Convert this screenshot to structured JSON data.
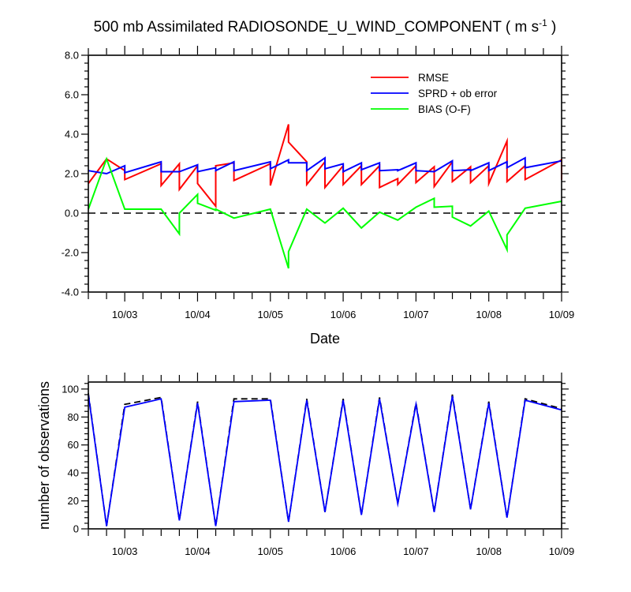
{
  "figure": {
    "title_main": "500 mb Assimilated RADIOSONDE_U_WIND_COMPONENT ( m s",
    "title_sup": "-1",
    "title_end": " )"
  },
  "chart_data": [
    {
      "type": "line",
      "title": "500 mb Assimilated RADIOSONDE_U_WIND_COMPONENT ( m s-1 )",
      "xlabel": "Date",
      "ylabel": "",
      "xlim": [
        2.5,
        9.0
      ],
      "ylim": [
        -4,
        8
      ],
      "y_ticks": [
        "-4.0",
        "-2.0",
        "0.0",
        "2.0",
        "4.0",
        "6.0",
        "8.0"
      ],
      "x_tick_labels": [
        "10/03",
        "10/04",
        "10/05",
        "10/06",
        "10/07",
        "10/08",
        "10/09"
      ],
      "x_tick_days": [
        3,
        4,
        5,
        6,
        7,
        8,
        9
      ],
      "legend": {
        "position": "top-right",
        "entries": [
          {
            "label": "RMSE",
            "color": "#ff0000"
          },
          {
            "label": "SPRD + ob error",
            "color": "#0000ff"
          },
          {
            "label": "BIAS (O-F)",
            "color": "#00ff00"
          }
        ]
      },
      "reference_line": {
        "y": 0,
        "style": "dashed",
        "color": "#000000"
      },
      "series": [
        {
          "name": "RMSE",
          "color": "#ff0000",
          "x": [
            2.5,
            2.75,
            2.75,
            3.0,
            3.0,
            3.5,
            3.5,
            3.75,
            3.75,
            4.0,
            4.0,
            4.25,
            4.25,
            4.5,
            4.5,
            5.0,
            5.0,
            5.25,
            5.25,
            5.5,
            5.5,
            5.75,
            5.75,
            6.0,
            6.0,
            6.25,
            6.25,
            6.5,
            6.5,
            6.75,
            6.75,
            7.0,
            7.0,
            7.25,
            7.25,
            7.5,
            7.5,
            7.75,
            7.75,
            8.0,
            8.0,
            8.25,
            8.25,
            8.5,
            8.5,
            9.0,
            9.0
          ],
          "y": [
            1.5,
            2.75,
            2.75,
            2.15,
            1.7,
            2.5,
            1.4,
            2.5,
            1.2,
            2.4,
            1.5,
            0.35,
            2.4,
            2.55,
            1.65,
            2.5,
            1.4,
            4.5,
            3.6,
            2.6,
            1.45,
            2.6,
            1.3,
            2.4,
            1.45,
            2.4,
            1.45,
            2.4,
            1.3,
            1.75,
            1.45,
            2.4,
            1.55,
            2.35,
            1.35,
            2.6,
            1.6,
            2.35,
            1.55,
            2.4,
            1.5,
            3.65,
            1.6,
            2.4,
            1.7,
            2.7,
            1.7
          ]
        },
        {
          "name": "SPRD + ob error",
          "color": "#0000ff",
          "x": [
            2.5,
            2.75,
            3.0,
            3.0,
            3.5,
            3.5,
            3.75,
            4.0,
            4.0,
            4.25,
            4.25,
            4.5,
            4.5,
            5.0,
            5.0,
            5.25,
            5.25,
            5.5,
            5.5,
            5.75,
            5.75,
            6.0,
            6.0,
            6.25,
            6.25,
            6.5,
            6.5,
            6.75,
            6.75,
            7.0,
            7.0,
            7.25,
            7.25,
            7.5,
            7.5,
            7.75,
            7.75,
            8.0,
            8.0,
            8.25,
            8.25,
            8.5,
            8.5,
            9.0
          ],
          "y": [
            2.15,
            2.0,
            2.4,
            2.05,
            2.6,
            2.1,
            2.1,
            2.45,
            2.1,
            2.3,
            2.15,
            2.6,
            2.15,
            2.6,
            2.25,
            2.7,
            2.55,
            2.55,
            2.15,
            2.8,
            2.25,
            2.5,
            2.1,
            2.55,
            2.2,
            2.55,
            2.15,
            2.2,
            2.15,
            2.55,
            2.15,
            2.1,
            2.1,
            2.65,
            2.15,
            2.2,
            2.15,
            2.55,
            2.15,
            2.6,
            2.3,
            2.8,
            2.3,
            2.65
          ]
        },
        {
          "name": "BIAS (O-F)",
          "color": "#00ff00",
          "x": [
            2.5,
            2.75,
            3.0,
            3.5,
            3.5,
            3.75,
            3.75,
            4.0,
            4.0,
            4.25,
            4.25,
            4.5,
            5.0,
            5.25,
            5.25,
            5.5,
            5.75,
            6.0,
            6.25,
            6.5,
            6.75,
            7.0,
            7.25,
            7.25,
            7.5,
            7.5,
            7.75,
            8.0,
            8.25,
            8.25,
            8.5,
            9.0
          ],
          "y": [
            0.2,
            2.75,
            0.2,
            0.2,
            0.2,
            -1.05,
            0.0,
            0.95,
            0.5,
            0.15,
            0.2,
            -0.25,
            0.2,
            -2.8,
            -1.95,
            0.2,
            -0.5,
            0.25,
            -0.75,
            0.05,
            -0.35,
            0.3,
            0.75,
            0.3,
            0.35,
            -0.2,
            -0.65,
            0.1,
            -1.85,
            -1.1,
            0.25,
            0.6
          ]
        }
      ]
    },
    {
      "type": "line",
      "title": "",
      "xlabel": "",
      "ylabel": "number of observations",
      "xlim": [
        2.5,
        9.0
      ],
      "ylim": [
        0,
        105
      ],
      "y_ticks": [
        "0",
        "20",
        "40",
        "60",
        "80",
        "100"
      ],
      "x_tick_labels": [
        "10/03",
        "10/04",
        "10/05",
        "10/06",
        "10/07",
        "10/08",
        "10/09"
      ],
      "x_tick_days": [
        3,
        4,
        5,
        6,
        7,
        8,
        9
      ],
      "series": [
        {
          "color": "#000000",
          "style": "dashed",
          "x": [
            2.5,
            2.75,
            3.0,
            3.5,
            3.75,
            4.0,
            4.25,
            4.5,
            5.0,
            5.25,
            5.5,
            5.75,
            6.0,
            6.25,
            6.5,
            6.75,
            7.0,
            7.25,
            7.5,
            7.75,
            8.0,
            8.25,
            8.5,
            9.0
          ],
          "y": [
            97,
            2,
            89,
            94,
            6,
            91,
            2,
            93,
            93,
            5,
            93,
            12,
            93,
            10,
            94,
            18,
            90,
            12,
            96,
            14,
            91,
            8,
            93,
            86
          ]
        },
        {
          "color": "#0000ff",
          "style": "solid",
          "x": [
            2.5,
            2.75,
            3.0,
            3.5,
            3.75,
            4.0,
            4.25,
            4.5,
            5.0,
            5.25,
            5.5,
            5.75,
            6.0,
            6.25,
            6.5,
            6.75,
            7.0,
            7.25,
            7.5,
            7.75,
            8.0,
            8.25,
            8.5,
            9.0
          ],
          "y": [
            96,
            2,
            87,
            93,
            6,
            90,
            2,
            91,
            92,
            5,
            92,
            12,
            92,
            10,
            93,
            18,
            89,
            12,
            95,
            14,
            90,
            8,
            92,
            85
          ]
        }
      ]
    }
  ]
}
